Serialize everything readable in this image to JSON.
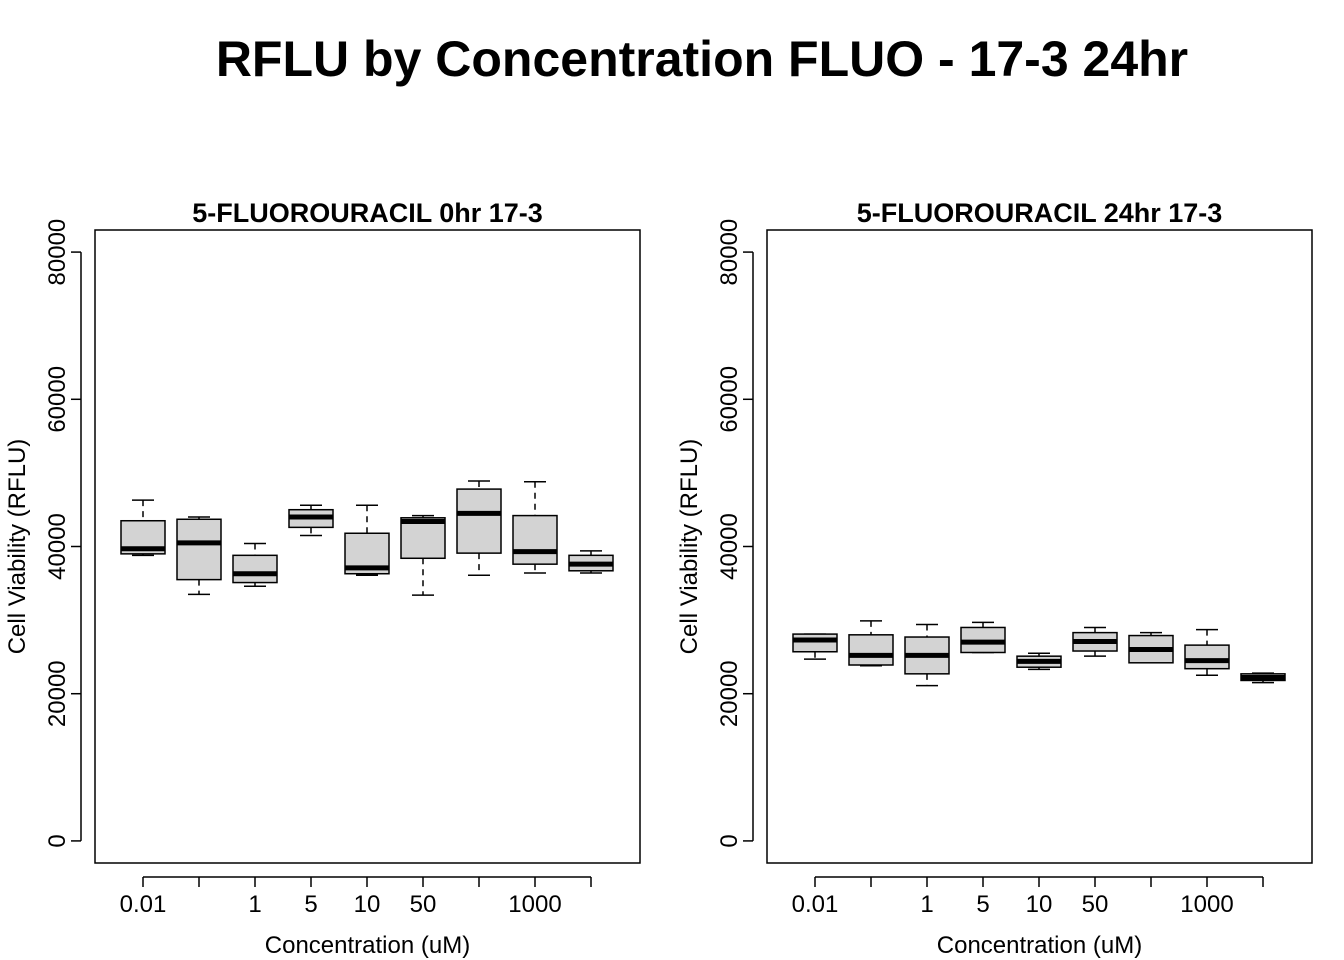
{
  "title": "RFLU by Concentration FLUO - 17-3 24hr",
  "colors": {
    "box_fill": "#d3d3d3",
    "line": "#000000"
  },
  "chart_data": [
    {
      "type": "box",
      "title": "5-FLUOROURACIL 0hr 17-3",
      "xlabel": "Concentration (uM)",
      "ylabel": "Cell Viability (RFLU)",
      "ylim": [
        -3000,
        83000
      ],
      "yticks": [
        "0",
        "20000",
        "40000",
        "60000",
        "80000"
      ],
      "ytick_values": [
        0,
        20000,
        40000,
        60000,
        80000
      ],
      "categories": [
        "0.01",
        "",
        "1",
        "5",
        "10",
        "50",
        "",
        "1000",
        ""
      ],
      "boxes": [
        {
          "min": 38800,
          "q1": 39000,
          "median": 39700,
          "q3": 43500,
          "max": 46300
        },
        {
          "min": 33500,
          "q1": 35500,
          "median": 40500,
          "q3": 43700,
          "max": 44000
        },
        {
          "min": 34600,
          "q1": 35100,
          "median": 36300,
          "q3": 38800,
          "max": 40400
        },
        {
          "min": 41500,
          "q1": 42600,
          "median": 44000,
          "q3": 45000,
          "max": 45600
        },
        {
          "min": 36100,
          "q1": 36300,
          "median": 37100,
          "q3": 41800,
          "max": 45600
        },
        {
          "min": 33400,
          "q1": 38400,
          "median": 43400,
          "q3": 43900,
          "max": 44200
        },
        {
          "min": 36100,
          "q1": 39100,
          "median": 44500,
          "q3": 47800,
          "max": 48900
        },
        {
          "min": 36400,
          "q1": 37600,
          "median": 39300,
          "q3": 44200,
          "max": 48800
        },
        {
          "min": 36400,
          "q1": 36700,
          "median": 37600,
          "q3": 38800,
          "max": 39400
        }
      ]
    },
    {
      "type": "box",
      "title": "5-FLUOROURACIL 24hr 17-3",
      "xlabel": "Concentration (uM)",
      "ylabel": "Cell Viability (RFLU)",
      "ylim": [
        -3000,
        83000
      ],
      "yticks": [
        "0",
        "20000",
        "40000",
        "60000",
        "80000"
      ],
      "ytick_values": [
        0,
        20000,
        40000,
        60000,
        80000
      ],
      "categories": [
        "0.01",
        "",
        "1",
        "5",
        "10",
        "50",
        "",
        "1000",
        ""
      ],
      "boxes": [
        {
          "min": 24700,
          "q1": 25700,
          "median": 27300,
          "q3": 28100,
          "max": 28100
        },
        {
          "min": 23800,
          "q1": 23900,
          "median": 25200,
          "q3": 28000,
          "max": 29900
        },
        {
          "min": 21100,
          "q1": 22700,
          "median": 25200,
          "q3": 27700,
          "max": 29400
        },
        {
          "min": 25600,
          "q1": 25600,
          "median": 27000,
          "q3": 29000,
          "max": 29700
        },
        {
          "min": 23300,
          "q1": 23600,
          "median": 24400,
          "q3": 25100,
          "max": 25500
        },
        {
          "min": 25100,
          "q1": 25800,
          "median": 27100,
          "q3": 28300,
          "max": 29000
        },
        {
          "min": 24200,
          "q1": 24200,
          "median": 26000,
          "q3": 27900,
          "max": 28300
        },
        {
          "min": 22500,
          "q1": 23400,
          "median": 24500,
          "q3": 26600,
          "max": 28700
        },
        {
          "min": 21500,
          "q1": 21800,
          "median": 22200,
          "q3": 22700,
          "max": 22800
        }
      ]
    }
  ]
}
